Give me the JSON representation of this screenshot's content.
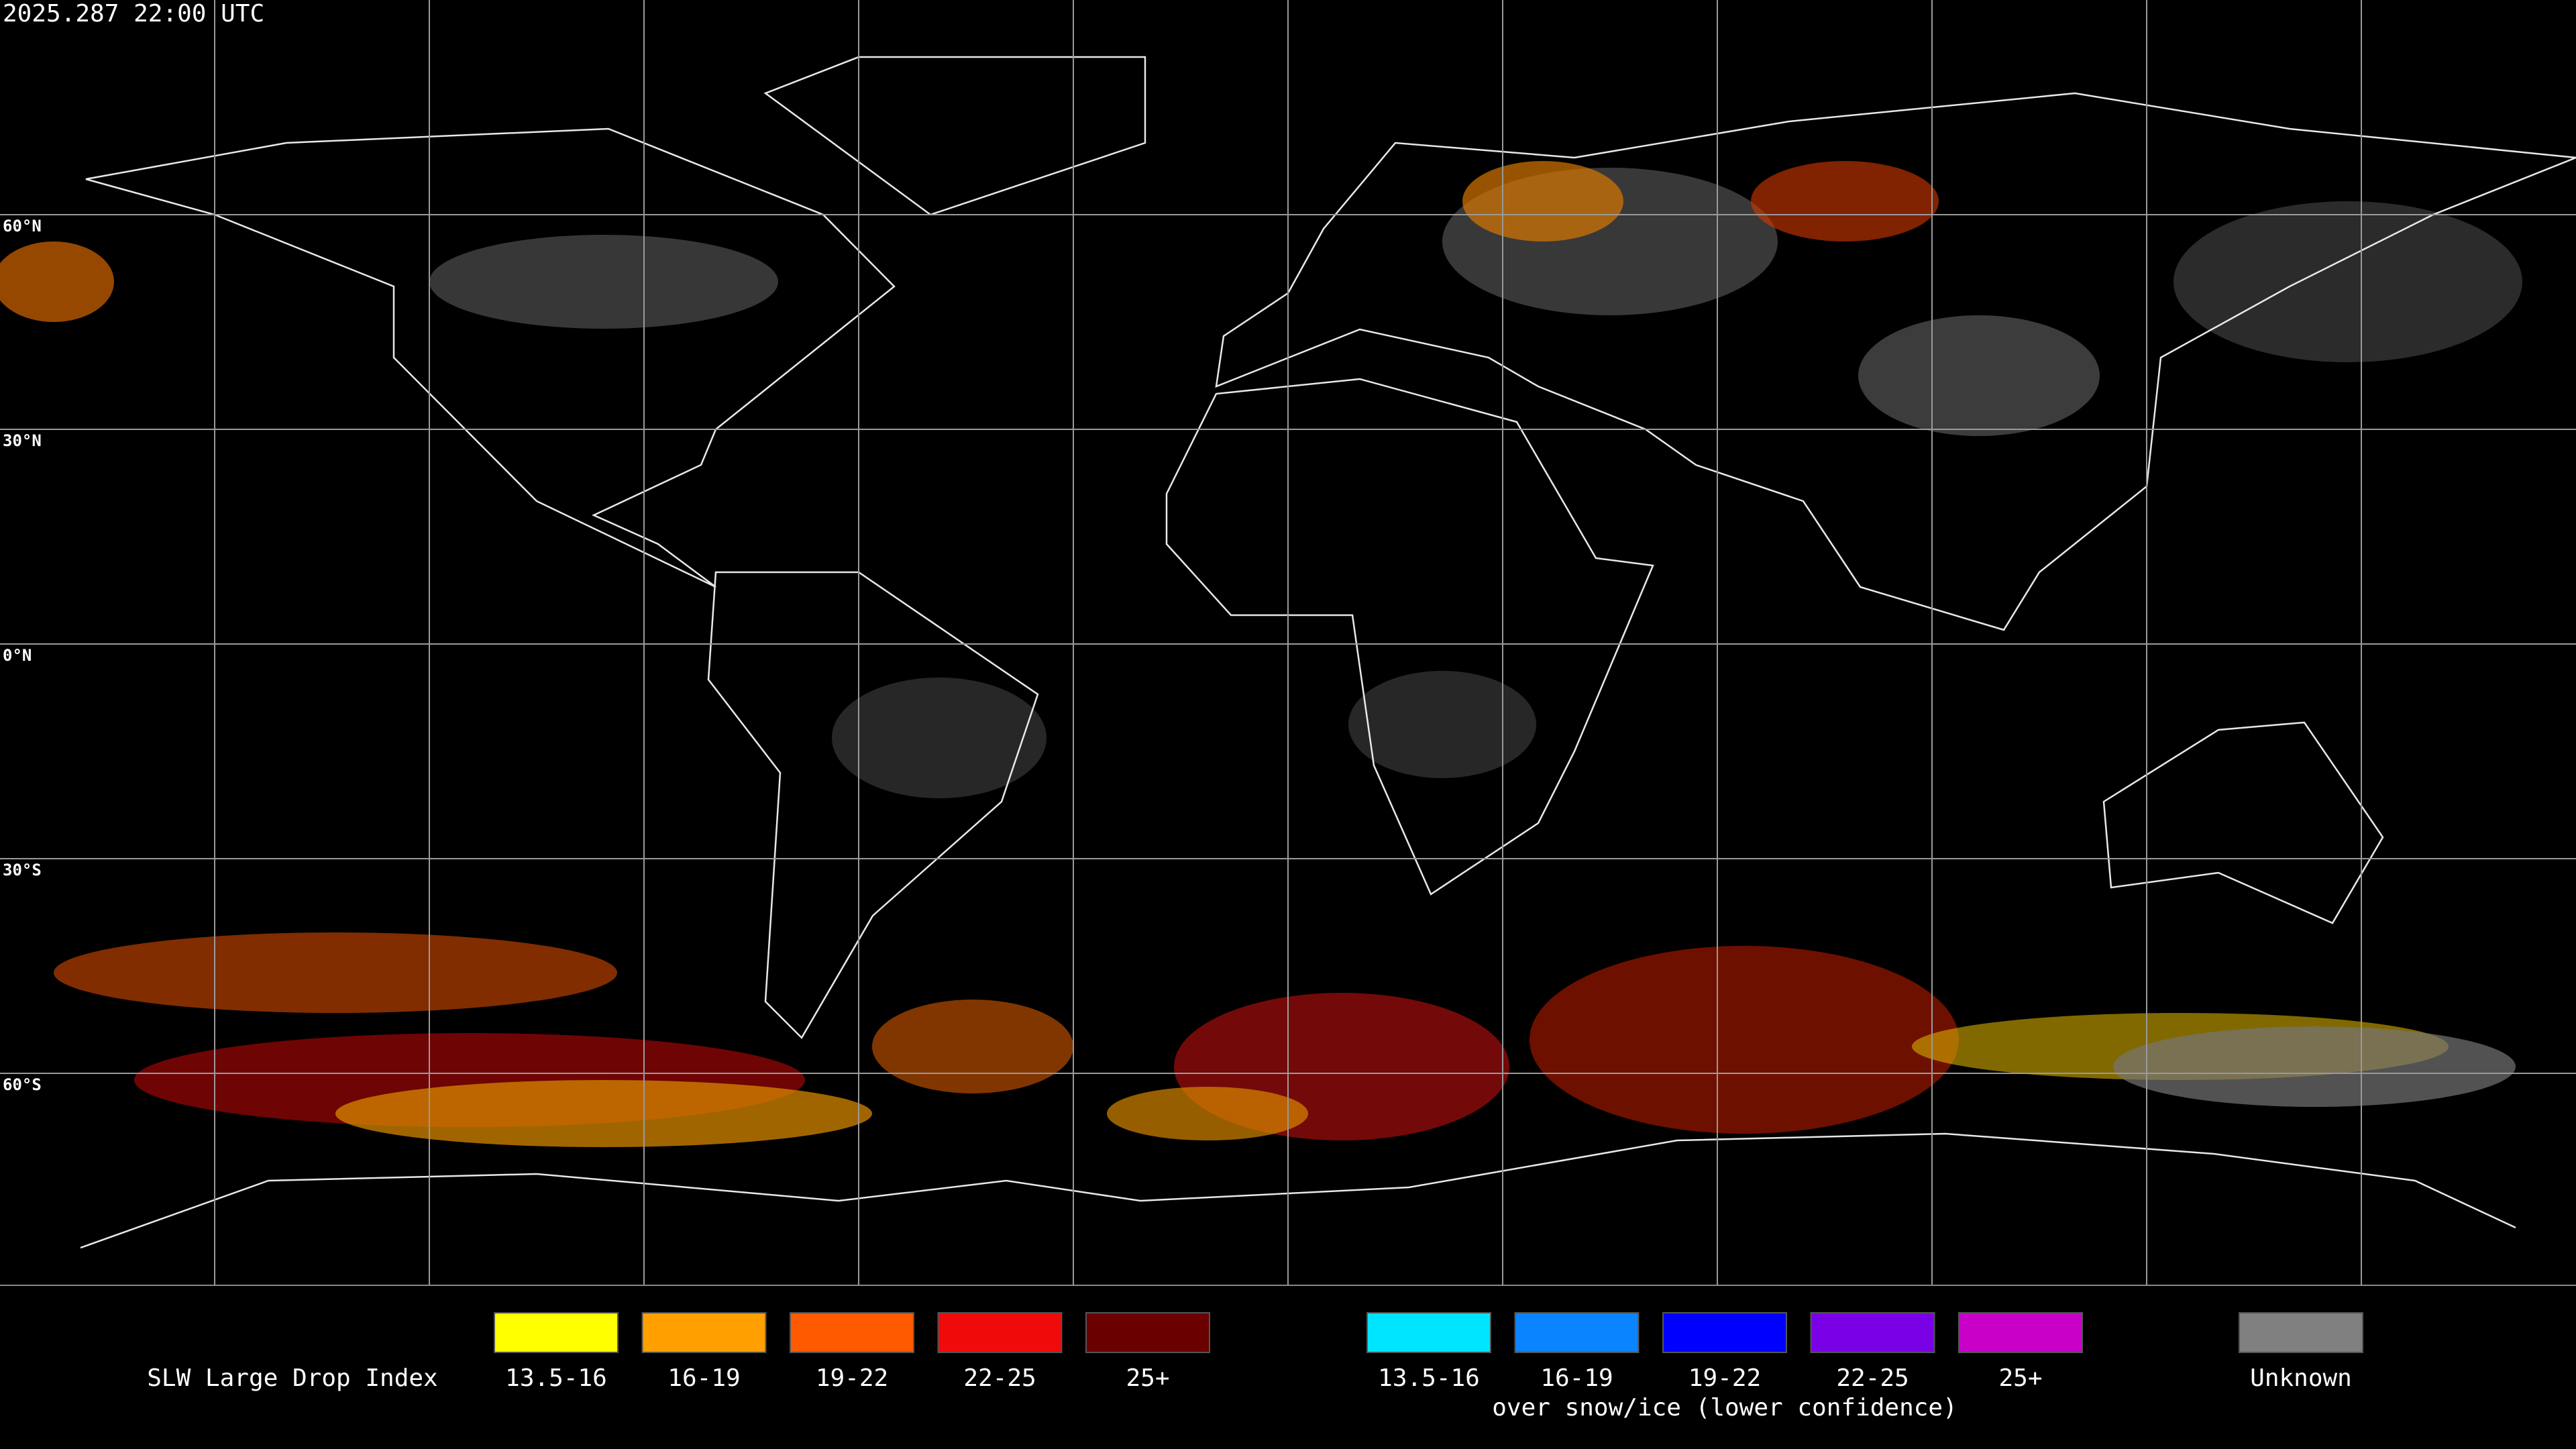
{
  "header": {
    "title": "2025.287 22:00 UTC"
  },
  "map": {
    "latitude_labels": [
      "60°N",
      "30°N",
      "0°N",
      "30°S",
      "60°S"
    ]
  },
  "legend": {
    "title": "SLW Large Drop Index",
    "liquid": [
      {
        "label": "13.5-16",
        "color": "#ffff00"
      },
      {
        "label": "16-19",
        "color": "#ffa000"
      },
      {
        "label": "19-22",
        "color": "#ff5a00"
      },
      {
        "label": "22-25",
        "color": "#f00a0a"
      },
      {
        "label": "25+",
        "color": "#6a0000"
      }
    ],
    "snow_ice": [
      {
        "label": "13.5-16",
        "color": "#00e5ff"
      },
      {
        "label": "16-19",
        "color": "#0a84ff"
      },
      {
        "label": "19-22",
        "color": "#0000ff"
      },
      {
        "label": "22-25",
        "color": "#7a00e6"
      },
      {
        "label": "25+",
        "color": "#c800c8"
      }
    ],
    "snow_ice_note": "over snow/ice (lower confidence)",
    "unknown": {
      "label": "Unknown",
      "color": "#808080"
    }
  }
}
